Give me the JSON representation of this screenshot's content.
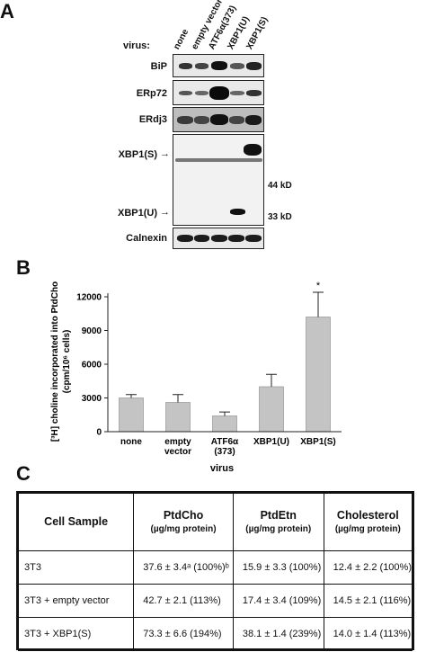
{
  "panelA": {
    "letter": "A",
    "virus_label": "virus:",
    "lanes": [
      "none",
      "empty vector",
      "ATF6α(373)",
      "XBP1(U)",
      "XBP1(S)"
    ],
    "blots": [
      {
        "label": "BiP"
      },
      {
        "label": "ERp72"
      },
      {
        "label": "ERdj3"
      },
      {
        "label": "XBP1(S)",
        "label2": "XBP1(U)"
      },
      {
        "label": "Calnexin"
      }
    ],
    "markers": [
      "44 kD",
      "33 kD"
    ],
    "arrow_glyph": "→"
  },
  "panelB": {
    "letter": "B",
    "ylabel_line1": "[³H] choline incorporated into PtdCho",
    "ylabel_line2": "(cpm/10⁶ cells)",
    "xlabel": "virus",
    "significance_mark": "*"
  },
  "chart_data": {
    "type": "bar",
    "categories": [
      "none",
      "empty\nvector",
      "ATF6α\n(373)",
      "XBP1(U)",
      "XBP1(S)"
    ],
    "values": [
      3000,
      2600,
      1400,
      4000,
      10200
    ],
    "errors": [
      300,
      700,
      350,
      1100,
      2200
    ],
    "ylim": [
      0,
      12000
    ],
    "yticks": [
      0,
      3000,
      6000,
      9000,
      12000
    ],
    "ylabel": "[³H] choline incorporated into PtdCho (cpm/10⁶ cells)",
    "xlabel": "virus",
    "bar_color": "#c4c4c4"
  },
  "panelC": {
    "letter": "C",
    "headers": [
      {
        "main": "Cell Sample",
        "sub": ""
      },
      {
        "main": "PtdCho",
        "sub": "(µg/mg protein)"
      },
      {
        "main": "PtdEtn",
        "sub": "(µg/mg protein)"
      },
      {
        "main": "Cholesterol",
        "sub": "(µg/mg protein)"
      }
    ],
    "rows": [
      [
        "3T3",
        "37.6 ± 3.4ᵃ (100%)ᵇ",
        "15.9 ± 3.3  (100%)",
        "12.4 ± 2.2  (100%)"
      ],
      [
        "3T3 + empty vector",
        "42.7 ± 2.1  (113%)",
        "17.4 ± 3.4  (109%)",
        "14.5 ± 2.1  (116%)"
      ],
      [
        "3T3 + XBP1(S)",
        "73.3 ± 6.6  (194%)",
        "38.1 ± 1.4  (239%)",
        "14.0 ± 1.4  (113%)"
      ]
    ]
  }
}
